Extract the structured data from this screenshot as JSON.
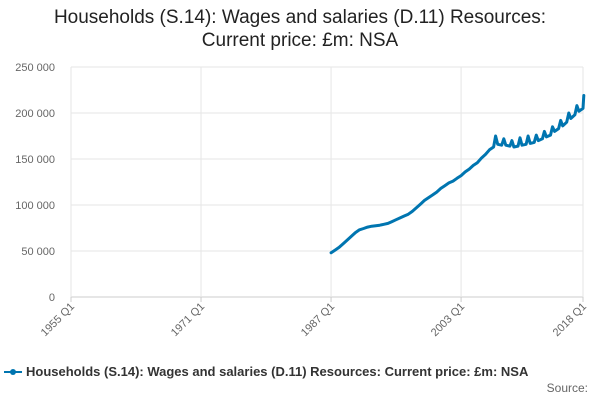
{
  "chart_data": {
    "type": "line",
    "title_lines": [
      "Households (S.14): Wages and salaries (D.11) Resources:",
      "Current price: £m: NSA"
    ],
    "xlabel": "",
    "ylabel": "",
    "ylim": [
      0,
      250000
    ],
    "yticks": [
      0,
      50000,
      100000,
      150000,
      200000,
      250000
    ],
    "ytick_labels": [
      "0",
      "50 000",
      "100 000",
      "150 000",
      "200 000",
      "250 000"
    ],
    "xlim": [
      1955.0,
      2018.0
    ],
    "xticks": [
      1955.0,
      1971.0,
      1987.0,
      2003.0,
      2018.0
    ],
    "xtick_labels": [
      "1955 Q1",
      "1971 Q1",
      "1987 Q1",
      "2003 Q1",
      "2018 Q1"
    ],
    "grid": true,
    "legend_position": "bottom",
    "series": [
      {
        "name": "Households (S.14): Wages and salaries (D.11) Resources: Current price: £m: NSA",
        "color": "#0075b0",
        "points": [
          [
            1987.0,
            48000
          ],
          [
            1987.5,
            51000
          ],
          [
            1988.0,
            54000
          ],
          [
            1988.5,
            58000
          ],
          [
            1989.0,
            62000
          ],
          [
            1989.5,
            66000
          ],
          [
            1990.0,
            70000
          ],
          [
            1990.5,
            73000
          ],
          [
            1991.0,
            74500
          ],
          [
            1991.5,
            76000
          ],
          [
            1992.0,
            77000
          ],
          [
            1992.5,
            77500
          ],
          [
            1993.0,
            78000
          ],
          [
            1993.5,
            79000
          ],
          [
            1994.0,
            80000
          ],
          [
            1994.5,
            82000
          ],
          [
            1995.0,
            84000
          ],
          [
            1995.5,
            86000
          ],
          [
            1996.0,
            88000
          ],
          [
            1996.5,
            90000
          ],
          [
            1997.0,
            93000
          ],
          [
            1997.5,
            97000
          ],
          [
            1998.0,
            101000
          ],
          [
            1998.5,
            105000
          ],
          [
            1999.0,
            108000
          ],
          [
            1999.5,
            111000
          ],
          [
            2000.0,
            114000
          ],
          [
            2000.5,
            118000
          ],
          [
            2001.0,
            121000
          ],
          [
            2001.5,
            124000
          ],
          [
            2002.0,
            126000
          ],
          [
            2002.5,
            129000
          ],
          [
            2003.0,
            132000
          ],
          [
            2003.5,
            136000
          ],
          [
            2004.0,
            139000
          ],
          [
            2004.5,
            143000
          ],
          [
            2005.0,
            146000
          ],
          [
            2005.5,
            151000
          ],
          [
            2006.0,
            155000
          ],
          [
            2006.5,
            160000
          ],
          [
            2007.0,
            163000
          ],
          [
            2007.25,
            175000
          ],
          [
            2007.5,
            166000
          ],
          [
            2008.0,
            165000
          ],
          [
            2008.25,
            172000
          ],
          [
            2008.5,
            165000
          ],
          [
            2009.0,
            164000
          ],
          [
            2009.25,
            170000
          ],
          [
            2009.5,
            163000
          ],
          [
            2010.0,
            164000
          ],
          [
            2010.25,
            173000
          ],
          [
            2010.5,
            165000
          ],
          [
            2011.0,
            166000
          ],
          [
            2011.25,
            175000
          ],
          [
            2011.5,
            167000
          ],
          [
            2012.0,
            168000
          ],
          [
            2012.25,
            176000
          ],
          [
            2012.5,
            170000
          ],
          [
            2013.0,
            172000
          ],
          [
            2013.25,
            180000
          ],
          [
            2013.5,
            174000
          ],
          [
            2014.0,
            176000
          ],
          [
            2014.25,
            185000
          ],
          [
            2014.5,
            180000
          ],
          [
            2015.0,
            183000
          ],
          [
            2015.25,
            192000
          ],
          [
            2015.5,
            186000
          ],
          [
            2016.0,
            190000
          ],
          [
            2016.25,
            200000
          ],
          [
            2016.5,
            194000
          ],
          [
            2017.0,
            198000
          ],
          [
            2017.25,
            208000
          ],
          [
            2017.5,
            202000
          ],
          [
            2018.0,
            205000
          ],
          [
            2018.1,
            219000
          ]
        ]
      }
    ]
  },
  "legend": {
    "label": "Households (S.14): Wages and salaries (D.11) Resources: Current price: £m: NSA"
  },
  "source": {
    "label": "Source:"
  }
}
